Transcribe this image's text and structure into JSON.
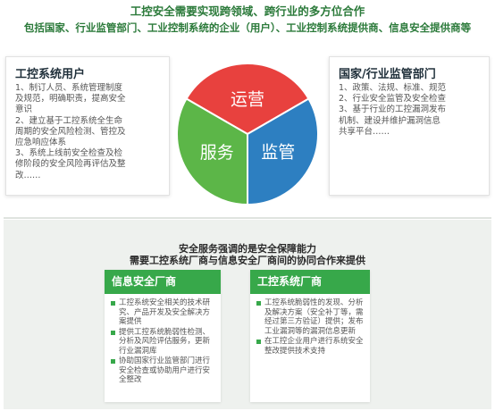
{
  "header": {
    "line1": "工控安全需要实现跨领域、跨行业的多方位合作",
    "line2": "包括国家、行业监管部门、工业控制系统的企业（用户）、工业控制系统提供商、信息安全提供商等"
  },
  "left_panel": {
    "title": "工控系统用户",
    "lines": [
      "1、制订人员、系统管理制度",
      "及规范，明确职责，提高安全",
      "意识",
      "2、建立基于工控系统全生命",
      "周期的安全风险检测、管控及",
      "应急响应体系",
      "3、系统上线前安全检查及检",
      "修阶段的安全风险再评估及整",
      "改……"
    ]
  },
  "right_panel": {
    "title": "国家/行业监管部门",
    "lines": [
      "1、政策、法规、标准、规范",
      "2、行业安全监管及安全检查",
      "3、基于行业的工控漏洞发布",
      "机制、建设并维护漏洞信息",
      "共享平台……"
    ]
  },
  "pie": {
    "segments": [
      {
        "label": "运营",
        "color": "#e8413e",
        "share": 0.3333
      },
      {
        "label": "监管",
        "color": "#2d7fc1",
        "share": 0.3333
      },
      {
        "label": "服务",
        "color": "#5cb648",
        "share": 0.3333
      }
    ]
  },
  "middle": {
    "line1": "安全服务强调的是安全保障能力",
    "line2": "需要工控系统厂商与信息安全厂商间的协同合作来提供"
  },
  "card_left": {
    "title": "信息安全厂商",
    "items": [
      "工控系统安全相关的技术研究、产品开发及安全解决方案提供",
      "提供工控系统脆弱性检测、分析及风险评估服务，更新行业漏洞库",
      "协助国家行业监管部门进行安全检查或协助用户进行安全整改"
    ]
  },
  "card_right": {
    "title": "工控系统厂商",
    "items": [
      "工控系统脆弱性的发现、分析及解决方案（安全补丁等，需经过第三方验证）提供；发布工业漏洞等的漏洞信息更新",
      "在工控企业用户进行系统安全整改提供技术支持"
    ]
  }
}
